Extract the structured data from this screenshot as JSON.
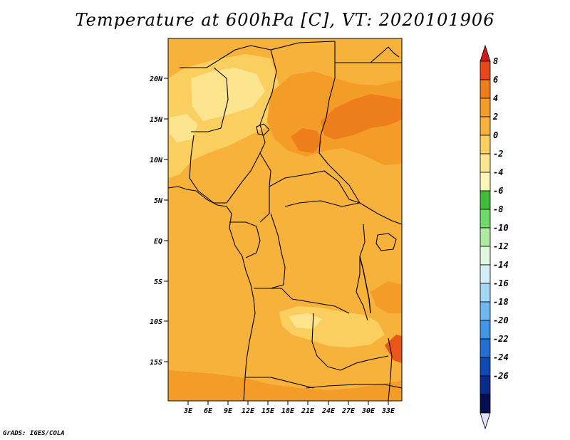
{
  "title": "Temperature at 600hPa [C], VT: 2020101906",
  "footer": "GrADS: IGES/COLA",
  "map": {
    "lat_labels": [
      "20N",
      "15N",
      "10N",
      "5N",
      "EQ",
      "5S",
      "10S",
      "15S"
    ],
    "lon_labels": [
      "3E",
      "6E",
      "9E",
      "12E",
      "15E",
      "18E",
      "21E",
      "24E",
      "27E",
      "30E",
      "33E"
    ],
    "field_colors": {
      "base": "#f7b23c",
      "warm": "#f39c28",
      "hot": "#ee7d1c",
      "hottest": "#e8561b",
      "cool": "#fbcf5f",
      "coolest": "#fde48f"
    }
  },
  "colorbar": {
    "labels": [
      "8",
      "6",
      "4",
      "2",
      "0",
      "-2",
      "-4",
      "-6",
      "-8",
      "-10",
      "-12",
      "-14",
      "-16",
      "-18",
      "-20",
      "-22",
      "-24",
      "-26"
    ],
    "colors": [
      "#cf1c17",
      "#e8471a",
      "#ee7d1c",
      "#f39c28",
      "#f7b23c",
      "#fbcf5f",
      "#fde48f",
      "#fdf6b8",
      "#3fbc3c",
      "#6fd96a",
      "#aeeaa0",
      "#e1f7dd",
      "#d3eef9",
      "#a5d6f4",
      "#6fb7ee",
      "#4294e4",
      "#236fd6",
      "#1148b8",
      "#082c8c",
      "#050e52",
      "#dfe3f5"
    ]
  }
}
